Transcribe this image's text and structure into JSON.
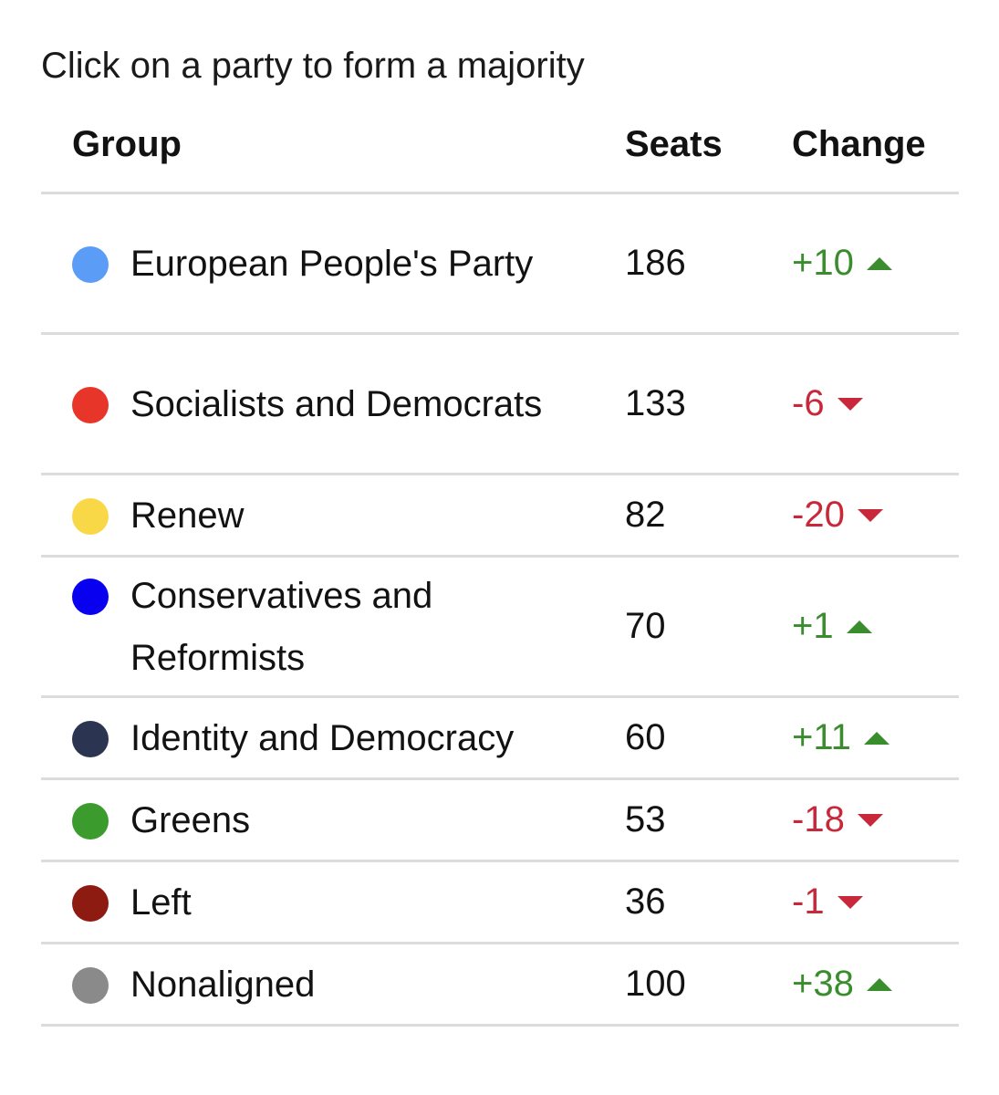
{
  "instruction": "Click on a party to form a majority",
  "columns": {
    "group": "Group",
    "seats": "Seats",
    "change": "Change"
  },
  "colors": {
    "increase": "#3a8d2d",
    "decrease": "#c8283a"
  },
  "rows": [
    {
      "name": "European People's Party",
      "seats": "186",
      "change": "+10",
      "direction": "up",
      "color": "#5b9cf6"
    },
    {
      "name": "Socialists and Democrats",
      "seats": "133",
      "change": "-6",
      "direction": "down",
      "color": "#e8352a"
    },
    {
      "name": "Renew",
      "seats": "82",
      "change": "-20",
      "direction": "down",
      "color": "#f9d848"
    },
    {
      "name": "Conservatives and Reformists",
      "seats": "70",
      "change": "+1",
      "direction": "up",
      "color": "#0a00f0"
    },
    {
      "name": "Identity and Democracy",
      "seats": "60",
      "change": "+11",
      "direction": "up",
      "color": "#2b3450"
    },
    {
      "name": "Greens",
      "seats": "53",
      "change": "-18",
      "direction": "down",
      "color": "#3b9b2d"
    },
    {
      "name": "Left",
      "seats": "36",
      "change": "-1",
      "direction": "down",
      "color": "#8e1b12"
    },
    {
      "name": "Nonaligned",
      "seats": "100",
      "change": "+38",
      "direction": "up",
      "color": "#8a8a8a"
    }
  ]
}
